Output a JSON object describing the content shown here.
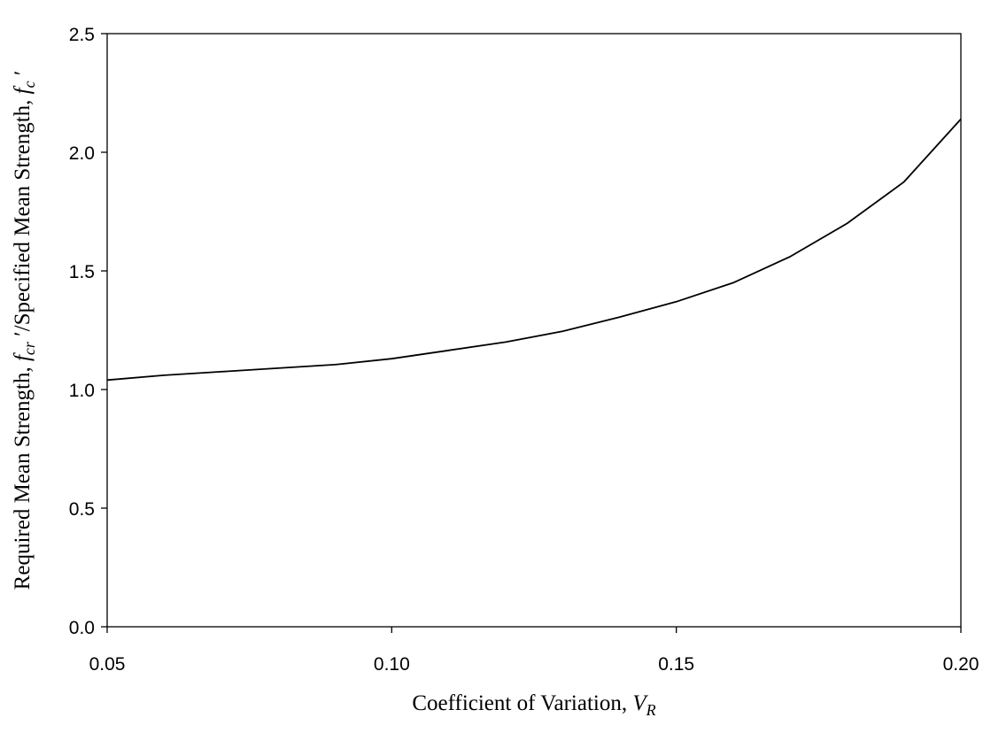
{
  "chart_data": {
    "type": "line",
    "title": "",
    "xlabel": {
      "prefix": "Coefficient of Variation, ",
      "var": "V",
      "sub": "R"
    },
    "ylabel": {
      "part1": "Required Mean Strength, ",
      "var1": "f",
      "sub1": "cr",
      "part2": " ′/Specified Mean Strength, ",
      "var2": "f",
      "sub2": "c",
      "part3": " ′"
    },
    "xlim": [
      0.05,
      0.2
    ],
    "ylim": [
      0.0,
      2.5
    ],
    "x_ticks": [
      0.05,
      0.1,
      0.15,
      0.2
    ],
    "x_tick_labels": [
      "0.05",
      "0.10",
      "0.15",
      "0.20"
    ],
    "y_ticks": [
      0.0,
      0.5,
      1.0,
      1.5,
      2.0,
      2.5
    ],
    "y_tick_labels": [
      "0.0",
      "0.5",
      "1.0",
      "1.5",
      "2.0",
      "2.5"
    ],
    "grid": false,
    "series": [
      {
        "x": [
          0.05,
          0.06,
          0.07,
          0.08,
          0.09,
          0.1,
          0.11,
          0.12,
          0.13,
          0.14,
          0.15,
          0.16,
          0.17,
          0.18,
          0.19,
          0.2
        ],
        "y": [
          1.04,
          1.06,
          1.075,
          1.09,
          1.105,
          1.13,
          1.165,
          1.2,
          1.245,
          1.305,
          1.37,
          1.45,
          1.56,
          1.7,
          1.875,
          2.14
        ]
      }
    ]
  }
}
